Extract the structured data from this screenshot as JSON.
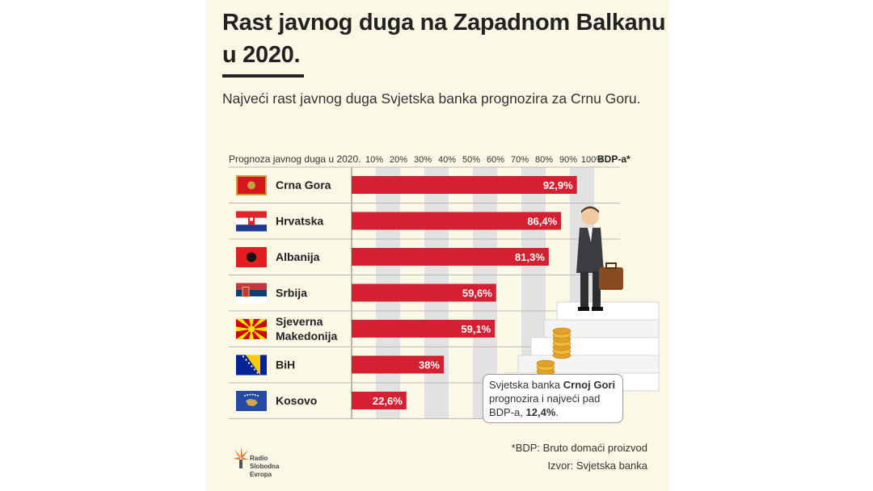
{
  "title_line1": "Rast javnog duga na Zapadnom Balkanu",
  "title_line2": "u 2020.",
  "subtitle": "Najveći rast javnog duga Svjetska banka prognozira za Crnu Goru.",
  "callout": {
    "part1": "Svjetska banka ",
    "bold1": "Crnoj Gori",
    "part2": " prognozira i najveći pad BDP-a, ",
    "bold2": "12,4%",
    "part3": "."
  },
  "footnote": "*BDP: Bruto domaći proizvod",
  "source": "Izvor: Svjetska banka",
  "logo_text": "Radio Slobodna Evropa",
  "colors": {
    "bar": "#d42030",
    "background": "#fbf8e6",
    "grid_band": "#e2e2e2"
  },
  "chart_data": {
    "type": "bar",
    "orientation": "horizontal",
    "header_label": "Prognoza javnog duga u 2020.",
    "unit_label": "BDP-a*",
    "ticks": [
      "10%",
      "20%",
      "30%",
      "40%",
      "50%",
      "60%",
      "70%",
      "80%",
      "90%",
      "100%"
    ],
    "xlim": [
      0,
      100
    ],
    "categories": [
      {
        "name": "Crna Gora",
        "flag": "montenegro-flag",
        "value": 92.9,
        "label": "92,9%"
      },
      {
        "name": "Hrvatska",
        "flag": "croatia-flag",
        "value": 86.4,
        "label": "86,4%"
      },
      {
        "name": "Albanija",
        "flag": "albania-flag",
        "value": 81.3,
        "label": "81,3%"
      },
      {
        "name": "Srbija",
        "flag": "serbia-flag",
        "value": 59.6,
        "label": "59,6%"
      },
      {
        "name": "Sjeverna Makedonija",
        "flag": "north-macedonia-flag",
        "value": 59.1,
        "label": "59,1%"
      },
      {
        "name": "BiH",
        "flag": "bih-flag",
        "value": 38,
        "label": "38%"
      },
      {
        "name": "Kosovo",
        "flag": "kosovo-flag",
        "value": 22.6,
        "label": "22,6%"
      }
    ]
  }
}
